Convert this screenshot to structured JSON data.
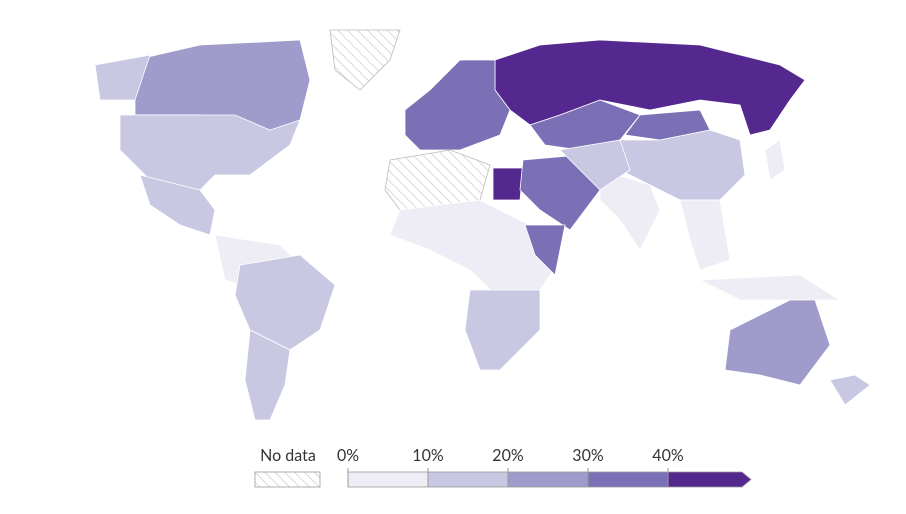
{
  "legend": {
    "no_data_label": "No data",
    "ticks": [
      {
        "value": 0,
        "label": "0%"
      },
      {
        "value": 10,
        "label": "10%"
      },
      {
        "value": 20,
        "label": "20%"
      },
      {
        "value": 30,
        "label": "30%"
      },
      {
        "value": 40,
        "label": "40%"
      }
    ],
    "colors": [
      "#eeedf5",
      "#c9c8e3",
      "#9f9bca",
      "#7b70b6",
      "#55288f"
    ]
  },
  "map": {
    "values": [
      45,
      35,
      30,
      15,
      25,
      15,
      null,
      15,
      10,
      5,
      15,
      10,
      30,
      null,
      45,
      30,
      5,
      15,
      5,
      5,
      5,
      20,
      15,
      30,
      5,
      15
    ]
  }
}
